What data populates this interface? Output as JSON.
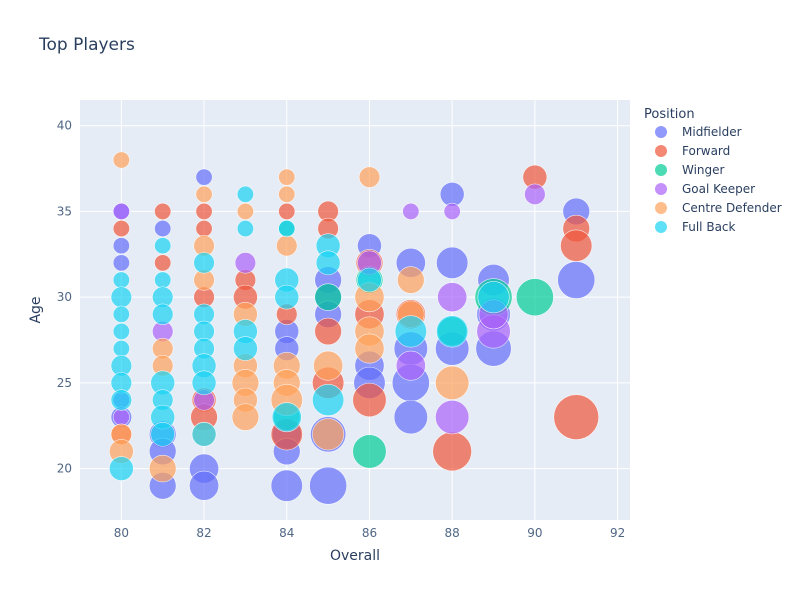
{
  "chart_data": {
    "type": "scatter",
    "title": "Top Players",
    "xlabel": "Overall",
    "ylabel": "Age",
    "xlim": [
      79,
      92.3
    ],
    "ylim": [
      17,
      41.5
    ],
    "xticks": [
      80,
      82,
      84,
      86,
      88,
      90,
      92
    ],
    "yticks": [
      20,
      25,
      30,
      35,
      40
    ],
    "grid": true,
    "legend_title": "Position",
    "legend_position": "right",
    "marker_size_encodes": "count",
    "series": [
      {
        "name": "Midfielder",
        "color": "#636efa",
        "points": [
          {
            "x": 80,
            "y": 35,
            "s": 1
          },
          {
            "x": 80,
            "y": 33,
            "s": 1
          },
          {
            "x": 80,
            "y": 32,
            "s": 1
          },
          {
            "x": 80,
            "y": 24,
            "s": 1
          },
          {
            "x": 80,
            "y": 23,
            "s": 2
          },
          {
            "x": 81,
            "y": 34,
            "s": 1
          },
          {
            "x": 81,
            "y": 22,
            "s": 4
          },
          {
            "x": 81,
            "y": 21,
            "s": 4
          },
          {
            "x": 81,
            "y": 19,
            "s": 4
          },
          {
            "x": 82,
            "y": 37,
            "s": 1
          },
          {
            "x": 82,
            "y": 20,
            "s": 5
          },
          {
            "x": 82,
            "y": 19,
            "s": 5
          },
          {
            "x": 84,
            "y": 28,
            "s": 3
          },
          {
            "x": 84,
            "y": 27,
            "s": 3
          },
          {
            "x": 84,
            "y": 22,
            "s": 5
          },
          {
            "x": 84,
            "y": 21,
            "s": 4
          },
          {
            "x": 84,
            "y": 19,
            "s": 6
          },
          {
            "x": 85,
            "y": 31,
            "s": 4
          },
          {
            "x": 85,
            "y": 30,
            "s": 4
          },
          {
            "x": 85,
            "y": 29,
            "s": 4
          },
          {
            "x": 85,
            "y": 22,
            "s": 8
          },
          {
            "x": 85,
            "y": 19,
            "s": 9
          },
          {
            "x": 86,
            "y": 33,
            "s": 3
          },
          {
            "x": 86,
            "y": 26,
            "s": 5
          },
          {
            "x": 86,
            "y": 25,
            "s": 6
          },
          {
            "x": 87,
            "y": 32,
            "s": 5
          },
          {
            "x": 87,
            "y": 27,
            "s": 7
          },
          {
            "x": 87,
            "y": 25,
            "s": 9
          },
          {
            "x": 87,
            "y": 23,
            "s": 7
          },
          {
            "x": 88,
            "y": 36,
            "s": 3
          },
          {
            "x": 88,
            "y": 32,
            "s": 6
          },
          {
            "x": 88,
            "y": 27,
            "s": 7
          },
          {
            "x": 89,
            "y": 31,
            "s": 6
          },
          {
            "x": 89,
            "y": 29,
            "s": 7
          },
          {
            "x": 89,
            "y": 27,
            "s": 8
          },
          {
            "x": 91,
            "y": 35,
            "s": 4
          },
          {
            "x": 91,
            "y": 31,
            "s": 9
          }
        ]
      },
      {
        "name": "Forward",
        "color": "#ef553b",
        "points": [
          {
            "x": 80,
            "y": 34,
            "s": 1
          },
          {
            "x": 80,
            "y": 22,
            "s": 2
          },
          {
            "x": 81,
            "y": 35,
            "s": 1
          },
          {
            "x": 81,
            "y": 32,
            "s": 1
          },
          {
            "x": 82,
            "y": 35,
            "s": 1
          },
          {
            "x": 82,
            "y": 34,
            "s": 1
          },
          {
            "x": 82,
            "y": 30,
            "s": 2
          },
          {
            "x": 82,
            "y": 24,
            "s": 3
          },
          {
            "x": 82,
            "y": 23,
            "s": 4
          },
          {
            "x": 83,
            "y": 31,
            "s": 2
          },
          {
            "x": 83,
            "y": 30,
            "s": 3
          },
          {
            "x": 84,
            "y": 35,
            "s": 1
          },
          {
            "x": 84,
            "y": 29,
            "s": 2
          },
          {
            "x": 84,
            "y": 22,
            "s": 6
          },
          {
            "x": 85,
            "y": 35,
            "s": 2
          },
          {
            "x": 85,
            "y": 34,
            "s": 2
          },
          {
            "x": 85,
            "y": 28,
            "s": 4
          },
          {
            "x": 85,
            "y": 25,
            "s": 6
          },
          {
            "x": 86,
            "y": 32,
            "s": 4
          },
          {
            "x": 86,
            "y": 29,
            "s": 5
          },
          {
            "x": 86,
            "y": 24,
            "s": 7
          },
          {
            "x": 87,
            "y": 29,
            "s": 5
          },
          {
            "x": 88,
            "y": 21,
            "s": 10
          },
          {
            "x": 90,
            "y": 37,
            "s": 3
          },
          {
            "x": 91,
            "y": 34,
            "s": 4
          },
          {
            "x": 91,
            "y": 33,
            "s": 6
          },
          {
            "x": 91,
            "y": 23,
            "s": 14
          }
        ]
      },
      {
        "name": "Winger",
        "color": "#00cc96",
        "points": [
          {
            "x": 84,
            "y": 34,
            "s": 1
          },
          {
            "x": 84,
            "y": 23,
            "s": 4
          },
          {
            "x": 85,
            "y": 30,
            "s": 4
          },
          {
            "x": 86,
            "y": 31,
            "s": 4
          },
          {
            "x": 86,
            "y": 21,
            "s": 7
          },
          {
            "x": 88,
            "y": 28,
            "s": 5
          },
          {
            "x": 89,
            "y": 30,
            "s": 9
          },
          {
            "x": 90,
            "y": 30,
            "s": 9
          }
        ]
      },
      {
        "name": "Goal Keeper",
        "color": "#ab63fa",
        "points": [
          {
            "x": 80,
            "y": 35,
            "s": 1
          },
          {
            "x": 80,
            "y": 23,
            "s": 1
          },
          {
            "x": 81,
            "y": 28,
            "s": 2
          },
          {
            "x": 82,
            "y": 24,
            "s": 2
          },
          {
            "x": 83,
            "y": 32,
            "s": 2
          },
          {
            "x": 86,
            "y": 32,
            "s": 3
          },
          {
            "x": 87,
            "y": 35,
            "s": 1
          },
          {
            "x": 87,
            "y": 26,
            "s": 5
          },
          {
            "x": 88,
            "y": 35,
            "s": 1
          },
          {
            "x": 88,
            "y": 30,
            "s": 5
          },
          {
            "x": 88,
            "y": 23,
            "s": 7
          },
          {
            "x": 89,
            "y": 28,
            "s": 7
          },
          {
            "x": 89,
            "y": 29,
            "s": 5
          },
          {
            "x": 90,
            "y": 36,
            "s": 2
          }
        ]
      },
      {
        "name": "Centre Defender",
        "color": "#ffa15a",
        "points": [
          {
            "x": 80,
            "y": 38,
            "s": 1
          },
          {
            "x": 80,
            "y": 22,
            "s": 2
          },
          {
            "x": 80,
            "y": 21,
            "s": 3
          },
          {
            "x": 81,
            "y": 27,
            "s": 2
          },
          {
            "x": 81,
            "y": 26,
            "s": 2
          },
          {
            "x": 81,
            "y": 20,
            "s": 4
          },
          {
            "x": 82,
            "y": 36,
            "s": 1
          },
          {
            "x": 82,
            "y": 33,
            "s": 2
          },
          {
            "x": 82,
            "y": 31,
            "s": 2
          },
          {
            "x": 82,
            "y": 22,
            "s": 3
          },
          {
            "x": 83,
            "y": 35,
            "s": 1
          },
          {
            "x": 83,
            "y": 29,
            "s": 3
          },
          {
            "x": 83,
            "y": 26,
            "s": 3
          },
          {
            "x": 83,
            "y": 25,
            "s": 4
          },
          {
            "x": 83,
            "y": 24,
            "s": 3
          },
          {
            "x": 83,
            "y": 23,
            "s": 4
          },
          {
            "x": 84,
            "y": 37,
            "s": 1
          },
          {
            "x": 84,
            "y": 36,
            "s": 1
          },
          {
            "x": 84,
            "y": 33,
            "s": 2
          },
          {
            "x": 84,
            "y": 26,
            "s": 4
          },
          {
            "x": 84,
            "y": 25,
            "s": 4
          },
          {
            "x": 84,
            "y": 24,
            "s": 6
          },
          {
            "x": 85,
            "y": 26,
            "s": 5
          },
          {
            "x": 85,
            "y": 22,
            "s": 6
          },
          {
            "x": 86,
            "y": 37,
            "s": 2
          },
          {
            "x": 86,
            "y": 30,
            "s": 5
          },
          {
            "x": 86,
            "y": 28,
            "s": 5
          },
          {
            "x": 86,
            "y": 27,
            "s": 5
          },
          {
            "x": 87,
            "y": 31,
            "s": 4
          },
          {
            "x": 87,
            "y": 29,
            "s": 4
          },
          {
            "x": 88,
            "y": 25,
            "s": 7
          }
        ]
      },
      {
        "name": "Full Back",
        "color": "#19d3f3",
        "points": [
          {
            "x": 80,
            "y": 31,
            "s": 1
          },
          {
            "x": 80,
            "y": 30,
            "s": 2
          },
          {
            "x": 80,
            "y": 29,
            "s": 1
          },
          {
            "x": 80,
            "y": 28,
            "s": 1
          },
          {
            "x": 80,
            "y": 27,
            "s": 1
          },
          {
            "x": 80,
            "y": 26,
            "s": 2
          },
          {
            "x": 80,
            "y": 25,
            "s": 2
          },
          {
            "x": 80,
            "y": 24,
            "s": 2
          },
          {
            "x": 80,
            "y": 20,
            "s": 3
          },
          {
            "x": 81,
            "y": 33,
            "s": 1
          },
          {
            "x": 81,
            "y": 31,
            "s": 1
          },
          {
            "x": 81,
            "y": 30,
            "s": 2
          },
          {
            "x": 81,
            "y": 29,
            "s": 2
          },
          {
            "x": 81,
            "y": 25,
            "s": 3
          },
          {
            "x": 81,
            "y": 24,
            "s": 2
          },
          {
            "x": 81,
            "y": 23,
            "s": 3
          },
          {
            "x": 81,
            "y": 22,
            "s": 3
          },
          {
            "x": 82,
            "y": 32,
            "s": 2
          },
          {
            "x": 82,
            "y": 29,
            "s": 2
          },
          {
            "x": 82,
            "y": 28,
            "s": 2
          },
          {
            "x": 82,
            "y": 27,
            "s": 2
          },
          {
            "x": 82,
            "y": 26,
            "s": 3
          },
          {
            "x": 82,
            "y": 25,
            "s": 3
          },
          {
            "x": 82,
            "y": 22,
            "s": 3
          },
          {
            "x": 83,
            "y": 36,
            "s": 1
          },
          {
            "x": 83,
            "y": 34,
            "s": 1
          },
          {
            "x": 83,
            "y": 28,
            "s": 3
          },
          {
            "x": 83,
            "y": 27,
            "s": 3
          },
          {
            "x": 84,
            "y": 34,
            "s": 1
          },
          {
            "x": 84,
            "y": 31,
            "s": 3
          },
          {
            "x": 84,
            "y": 30,
            "s": 3
          },
          {
            "x": 84,
            "y": 23,
            "s": 5
          },
          {
            "x": 85,
            "y": 33,
            "s": 3
          },
          {
            "x": 85,
            "y": 32,
            "s": 3
          },
          {
            "x": 85,
            "y": 24,
            "s": 6
          },
          {
            "x": 86,
            "y": 31,
            "s": 3
          },
          {
            "x": 87,
            "y": 28,
            "s": 6
          },
          {
            "x": 88,
            "y": 28,
            "s": 6
          },
          {
            "x": 89,
            "y": 30,
            "s": 6
          }
        ]
      }
    ]
  }
}
